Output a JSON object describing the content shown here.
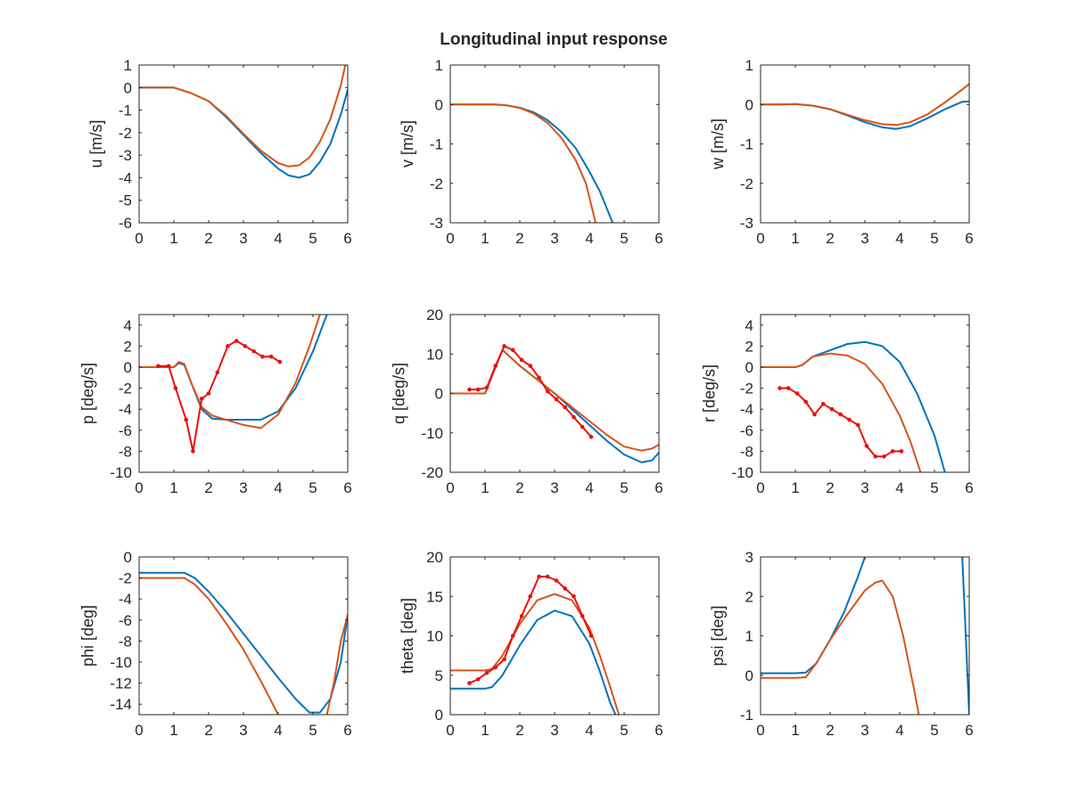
{
  "figure": {
    "title": "Longitudinal input response"
  },
  "colors": {
    "model_a": "#0072BD",
    "model_b": "#D95319",
    "measured": "#E8110F",
    "axis": "#262626"
  },
  "chart_data": [
    {
      "id": "u",
      "type": "line",
      "ylabel": "u [m/s]",
      "xlim": [
        0,
        6
      ],
      "ylim": [
        -6,
        1
      ],
      "xticks": [
        0,
        1,
        2,
        3,
        4,
        5,
        6
      ],
      "yticks": [
        1,
        0,
        -1,
        -2,
        -3,
        -4,
        -5,
        -6
      ],
      "series": [
        {
          "color": "model_a",
          "x": [
            0,
            1,
            1.2,
            1.5,
            2,
            2.5,
            3,
            3.5,
            4,
            4.3,
            4.6,
            4.9,
            5.2,
            5.5,
            5.8,
            6
          ],
          "y": [
            0,
            0,
            -0.1,
            -0.25,
            -0.6,
            -1.3,
            -2.1,
            -2.9,
            -3.6,
            -3.9,
            -4.0,
            -3.85,
            -3.3,
            -2.5,
            -1.2,
            -0.1
          ]
        },
        {
          "color": "model_b",
          "x": [
            0,
            1,
            1.2,
            1.5,
            2,
            2.5,
            3,
            3.5,
            4,
            4.3,
            4.6,
            4.9,
            5.2,
            5.5,
            5.8,
            5.93
          ],
          "y": [
            0,
            0,
            -0.1,
            -0.25,
            -0.6,
            -1.25,
            -2.05,
            -2.8,
            -3.35,
            -3.5,
            -3.45,
            -3.1,
            -2.4,
            -1.4,
            0.1,
            1.0
          ]
        }
      ]
    },
    {
      "id": "v",
      "type": "line",
      "ylabel": "v [m/s]",
      "xlim": [
        0,
        6
      ],
      "ylim": [
        -3,
        1
      ],
      "xticks": [
        0,
        1,
        2,
        3,
        4,
        5,
        6
      ],
      "yticks": [
        1,
        0,
        -1,
        -2,
        -3
      ],
      "series": [
        {
          "color": "model_a",
          "x": [
            0,
            1,
            1.3,
            1.6,
            2,
            2.4,
            2.8,
            3.2,
            3.6,
            4.0,
            4.3,
            4.67
          ],
          "y": [
            0,
            0,
            0,
            -0.02,
            -0.08,
            -0.2,
            -0.4,
            -0.7,
            -1.1,
            -1.7,
            -2.2,
            -3.0
          ]
        },
        {
          "color": "model_b",
          "x": [
            0,
            1,
            1.3,
            1.6,
            2,
            2.4,
            2.8,
            3.2,
            3.6,
            3.9,
            4.18
          ],
          "y": [
            0,
            0,
            0,
            -0.02,
            -0.09,
            -0.23,
            -0.47,
            -0.85,
            -1.4,
            -2.0,
            -3.0
          ]
        }
      ]
    },
    {
      "id": "w",
      "type": "line",
      "ylabel": "w [m/s]",
      "xlim": [
        0,
        6
      ],
      "ylim": [
        -3,
        1
      ],
      "xticks": [
        0,
        1,
        2,
        3,
        4,
        5,
        6
      ],
      "yticks": [
        1,
        0,
        -1,
        -2,
        -3
      ],
      "series": [
        {
          "color": "model_a",
          "x": [
            0,
            0.5,
            1,
            1.5,
            2,
            2.5,
            3,
            3.5,
            3.9,
            4.3,
            4.8,
            5.3,
            5.8,
            6
          ],
          "y": [
            0,
            0,
            0.01,
            -0.03,
            -0.12,
            -0.28,
            -0.45,
            -0.58,
            -0.62,
            -0.55,
            -0.35,
            -0.12,
            0.07,
            0.08
          ]
        },
        {
          "color": "model_b",
          "x": [
            0,
            0.5,
            1,
            1.5,
            2,
            2.5,
            3,
            3.5,
            3.9,
            4.3,
            4.8,
            5.3,
            5.8,
            6
          ],
          "y": [
            0,
            0,
            0.01,
            -0.03,
            -0.12,
            -0.26,
            -0.4,
            -0.5,
            -0.52,
            -0.45,
            -0.25,
            0.05,
            0.38,
            0.52
          ]
        }
      ]
    },
    {
      "id": "p",
      "type": "line",
      "ylabel": "p [deg/s]",
      "xlim": [
        0,
        6
      ],
      "ylim": [
        -10,
        5
      ],
      "xticks": [
        0,
        1,
        2,
        3,
        4,
        5,
        6
      ],
      "yticks": [
        4,
        2,
        0,
        -2,
        -4,
        -6,
        -8,
        -10
      ],
      "series": [
        {
          "color": "model_a",
          "x": [
            0,
            1,
            1.15,
            1.3,
            1.5,
            1.8,
            2.1,
            2.5,
            3,
            3.5,
            4,
            4.5,
            5,
            5.4
          ],
          "y": [
            0,
            0,
            0.4,
            0.2,
            -1.5,
            -4.0,
            -4.9,
            -5.0,
            -5.0,
            -5.0,
            -4.2,
            -2.0,
            1.5,
            5.0
          ]
        },
        {
          "color": "model_b",
          "x": [
            0,
            1,
            1.15,
            1.3,
            1.5,
            1.8,
            2.1,
            2.5,
            3,
            3.5,
            4,
            4.5,
            4.9,
            5.2
          ],
          "y": [
            0,
            0,
            0.5,
            0.3,
            -1.5,
            -3.8,
            -4.6,
            -5.0,
            -5.5,
            -5.8,
            -4.5,
            -1.5,
            2.0,
            5.0
          ]
        },
        {
          "color": "measured",
          "markers": true,
          "x": [
            0.55,
            0.85,
            1.05,
            1.35,
            1.55,
            1.8,
            2.0,
            2.25,
            2.55,
            2.8,
            3.05,
            3.3,
            3.55,
            3.8,
            4.05
          ],
          "y": [
            0.1,
            0.1,
            -2.0,
            -5.0,
            -8.0,
            -3.0,
            -2.5,
            -0.5,
            2.0,
            2.5,
            2.0,
            1.5,
            1.0,
            1.0,
            0.5
          ]
        }
      ]
    },
    {
      "id": "q",
      "type": "line",
      "ylabel": "q [deg/s]",
      "xlim": [
        0,
        6
      ],
      "ylim": [
        -20,
        20
      ],
      "xticks": [
        0,
        1,
        2,
        3,
        4,
        5,
        6
      ],
      "yticks": [
        20,
        10,
        0,
        -10,
        -20
      ],
      "series": [
        {
          "color": "model_a",
          "x": [
            0,
            1,
            1.5,
            2,
            2.5,
            3,
            3.5,
            4,
            4.5,
            5,
            5.5,
            5.8,
            6
          ],
          "y": [
            0,
            0,
            11,
            7,
            3.5,
            0,
            -4,
            -8,
            -12,
            -15.5,
            -17.5,
            -17,
            -15
          ]
        },
        {
          "color": "model_b",
          "x": [
            0,
            1,
            1.5,
            2,
            2.5,
            3,
            3.5,
            4,
            4.5,
            5,
            5.5,
            5.8,
            6
          ],
          "y": [
            0,
            0,
            11,
            7,
            3.5,
            0,
            -3.5,
            -7,
            -10.5,
            -13.5,
            -14.5,
            -14,
            -13
          ]
        },
        {
          "color": "measured",
          "markers": true,
          "x": [
            0.55,
            0.8,
            1.05,
            1.3,
            1.55,
            1.8,
            2.05,
            2.3,
            2.55,
            2.8,
            3.05,
            3.3,
            3.55,
            3.8,
            4.05
          ],
          "y": [
            1,
            1,
            1.5,
            7,
            12,
            11,
            8.5,
            7,
            4,
            0.5,
            -1.5,
            -3.5,
            -6,
            -8.5,
            -11
          ]
        }
      ]
    },
    {
      "id": "r",
      "type": "line",
      "ylabel": "r [deg/s]",
      "xlim": [
        0,
        6
      ],
      "ylim": [
        -10,
        5
      ],
      "xticks": [
        0,
        1,
        2,
        3,
        4,
        5,
        6
      ],
      "yticks": [
        4,
        2,
        0,
        -2,
        -4,
        -6,
        -8,
        -10
      ],
      "series": [
        {
          "color": "model_a",
          "x": [
            0,
            1,
            1.2,
            1.5,
            2,
            2.5,
            3,
            3.5,
            4,
            4.5,
            5,
            5.3
          ],
          "y": [
            0,
            0,
            0.2,
            1.0,
            1.6,
            2.2,
            2.4,
            2.0,
            0.5,
            -2.5,
            -6.5,
            -10
          ]
        },
        {
          "color": "model_b",
          "x": [
            0,
            1,
            1.2,
            1.5,
            2,
            2.5,
            3,
            3.5,
            4,
            4.3,
            4.6
          ],
          "y": [
            0,
            0,
            0.2,
            1.0,
            1.3,
            1.1,
            0.3,
            -1.6,
            -4.6,
            -7.0,
            -10
          ]
        },
        {
          "color": "measured",
          "markers": true,
          "x": [
            0.55,
            0.8,
            1.05,
            1.3,
            1.55,
            1.8,
            2.05,
            2.3,
            2.55,
            2.8,
            3.05,
            3.3,
            3.55,
            3.8,
            4.05
          ],
          "y": [
            -2,
            -2,
            -2.5,
            -3.3,
            -4.5,
            -3.5,
            -4,
            -4.5,
            -5,
            -5.5,
            -7.5,
            -8.5,
            -8.5,
            -8,
            -8
          ]
        }
      ]
    },
    {
      "id": "phi",
      "type": "line",
      "ylabel": "phi [deg]",
      "xlim": [
        0,
        6
      ],
      "ylim": [
        -15,
        0
      ],
      "xticks": [
        0,
        1,
        2,
        3,
        4,
        5,
        6
      ],
      "yticks": [
        0,
        -2,
        -4,
        -6,
        -8,
        -10,
        -12,
        -14
      ],
      "series": [
        {
          "color": "model_a",
          "x": [
            0,
            1,
            1.3,
            1.6,
            2,
            2.5,
            3,
            3.5,
            4,
            4.5,
            4.9,
            5.2,
            5.5,
            5.8,
            6
          ],
          "y": [
            -1.5,
            -1.5,
            -1.5,
            -2.0,
            -3.3,
            -5.2,
            -7.3,
            -9.4,
            -11.5,
            -13.5,
            -14.8,
            -14.8,
            -13.5,
            -10.0,
            -5.5
          ]
        },
        {
          "color": "model_b",
          "x": [
            0,
            1,
            1.3,
            1.6,
            2,
            2.5,
            3,
            3.5,
            4
          ],
          "y": [
            -2.0,
            -2.0,
            -2.0,
            -2.6,
            -4.0,
            -6.3,
            -8.8,
            -11.8,
            -15.0
          ]
        },
        {
          "color": "model_b",
          "x": [
            5.4,
            5.6,
            5.8,
            6
          ],
          "y": [
            -15.0,
            -12.0,
            -8.0,
            -5.5
          ]
        }
      ]
    },
    {
      "id": "theta",
      "type": "line",
      "ylabel": "theta [deg]",
      "xlim": [
        0,
        6
      ],
      "ylim": [
        0,
        20
      ],
      "xticks": [
        0,
        1,
        2,
        3,
        4,
        5,
        6
      ],
      "yticks": [
        20,
        15,
        10,
        5,
        0
      ],
      "series": [
        {
          "color": "model_a",
          "x": [
            0,
            1,
            1.2,
            1.5,
            2,
            2.5,
            3,
            3.5,
            4,
            4.3,
            4.6,
            4.75
          ],
          "y": [
            3.3,
            3.3,
            3.5,
            5.0,
            8.8,
            12.0,
            13.2,
            12.5,
            9.0,
            5.5,
            1.5,
            0
          ]
        },
        {
          "color": "model_b",
          "x": [
            0,
            1,
            1.2,
            1.5,
            2,
            2.5,
            3,
            3.5,
            4,
            4.3,
            4.6,
            4.85
          ],
          "y": [
            5.6,
            5.6,
            5.8,
            7.5,
            11.5,
            14.5,
            15.3,
            14.5,
            11.0,
            7.5,
            3.5,
            0
          ]
        },
        {
          "color": "measured",
          "markers": true,
          "x": [
            0.55,
            0.8,
            1.05,
            1.3,
            1.55,
            1.8,
            2.05,
            2.3,
            2.55,
            2.8,
            3.05,
            3.3,
            3.55,
            3.8,
            4.05
          ],
          "y": [
            4.0,
            4.5,
            5.3,
            6.0,
            7.0,
            10.0,
            12.5,
            15.0,
            17.5,
            17.5,
            17.0,
            16.0,
            15.0,
            12.5,
            10.0
          ]
        }
      ]
    },
    {
      "id": "psi",
      "type": "line",
      "ylabel": "psi [deg]",
      "xlim": [
        0,
        6
      ],
      "ylim": [
        -1,
        3
      ],
      "xticks": [
        0,
        1,
        2,
        3,
        4,
        5,
        6
      ],
      "yticks": [
        3,
        2,
        1,
        0,
        -1
      ],
      "series": [
        {
          "color": "model_a",
          "x": [
            0,
            1,
            1.3,
            1.6,
            2,
            2.4,
            2.8,
            3.0
          ],
          "y": [
            0.05,
            0.05,
            0.07,
            0.3,
            0.9,
            1.6,
            2.5,
            3.0
          ]
        },
        {
          "color": "model_a",
          "x": [
            5.8,
            5.9,
            6.0
          ],
          "y": [
            3.0,
            1.0,
            -1.0
          ]
        },
        {
          "color": "model_b",
          "x": [
            0,
            1,
            1.3,
            1.6,
            2,
            2.5,
            3,
            3.3,
            3.5,
            3.8,
            4.1,
            4.4,
            4.55
          ],
          "y": [
            -0.07,
            -0.07,
            -0.05,
            0.3,
            0.9,
            1.55,
            2.15,
            2.35,
            2.4,
            2.0,
            1.0,
            -0.3,
            -1.0
          ]
        }
      ]
    }
  ]
}
